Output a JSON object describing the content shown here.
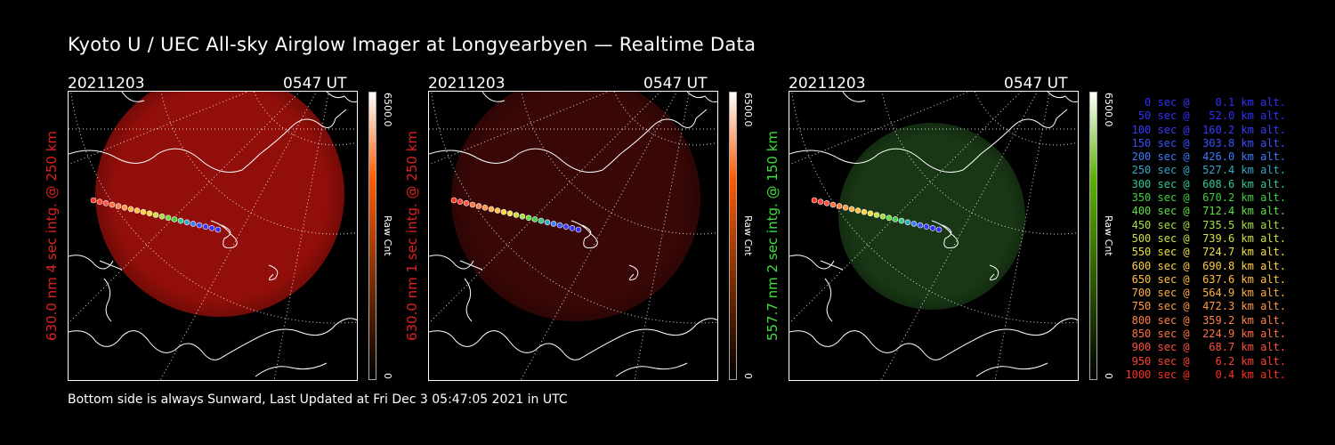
{
  "title": "Kyoto U / UEC All-sky Airglow Imager at Longyearbyen — Realtime Data",
  "footer": "Bottom side is always Sunward, Last Updated at Fri Dec  3 05:47:05 2021 in UTC",
  "panels": [
    {
      "date": "20211203",
      "time": "0547 UT",
      "side_label": "630.0 nm 4 sec intg. @ 250 km",
      "side_color": "#e02020",
      "colorbar_max": "6500.0",
      "colorbar_unit": "Raw Cnt",
      "colorbar_min": "0",
      "image_color": "#9a0f0a",
      "image_opacity": 0.95,
      "bar_top": "#ffffff",
      "bar_mid": "#ff5a00",
      "bar_bottom": "#000000"
    },
    {
      "date": "20211203",
      "time": "0547 UT",
      "side_label": "630.0 nm 1 sec intg. @ 250 km",
      "side_color": "#e02020",
      "colorbar_max": "6500.0",
      "colorbar_unit": "Raw Cnt",
      "colorbar_min": "0",
      "image_color": "#3c0806",
      "image_opacity": 0.95,
      "bar_top": "#ffffff",
      "bar_mid": "#ff5a00",
      "bar_bottom": "#000000"
    },
    {
      "date": "20211203",
      "time": "0547 UT",
      "side_label": "557.7 nm 2 sec intg. @ 150 km",
      "side_color": "#3ee03e",
      "colorbar_max": "6500.0",
      "colorbar_unit": "Raw Cnt",
      "colorbar_min": "0",
      "image_color": "#1a3a16",
      "image_opacity": 0.95,
      "bar_top": "#ffffff",
      "bar_mid": "#5ab400",
      "bar_bottom": "#000000"
    }
  ],
  "legend": [
    {
      "text": "   0 sec @    0.1 km alt.",
      "color": "#3030ff"
    },
    {
      "text": "  50 sec @   52.0 km alt.",
      "color": "#3030ff"
    },
    {
      "text": " 100 sec @  160.2 km alt.",
      "color": "#3a3aff"
    },
    {
      "text": " 150 sec @  303.8 km alt.",
      "color": "#3a50ff"
    },
    {
      "text": " 200 sec @  426.0 km alt.",
      "color": "#3a7cff"
    },
    {
      "text": " 250 sec @  527.4 km alt.",
      "color": "#30a8c8"
    },
    {
      "text": " 300 sec @  608.6 km alt.",
      "color": "#30c890"
    },
    {
      "text": " 350 sec @  670.2 km alt.",
      "color": "#40d040"
    },
    {
      "text": " 400 sec @  712.4 km alt.",
      "color": "#60e040"
    },
    {
      "text": " 450 sec @  735.5 km alt.",
      "color": "#a0e040"
    },
    {
      "text": " 500 sec @  739.6 km alt.",
      "color": "#d0e040"
    },
    {
      "text": " 550 sec @  724.7 km alt.",
      "color": "#f0e040"
    },
    {
      "text": " 600 sec @  690.8 km alt.",
      "color": "#ffd040"
    },
    {
      "text": " 650 sec @  637.6 km alt.",
      "color": "#ffc040"
    },
    {
      "text": " 700 sec @  564.9 km alt.",
      "color": "#ffb040"
    },
    {
      "text": " 750 sec @  472.3 km alt.",
      "color": "#ff9a40"
    },
    {
      "text": " 800 sec @  359.2 km alt.",
      "color": "#ff8040"
    },
    {
      "text": " 850 sec @  224.9 km alt.",
      "color": "#ff7040"
    },
    {
      "text": " 900 sec @   68.7 km alt.",
      "color": "#ff5040"
    },
    {
      "text": " 950 sec @    6.2 km alt.",
      "color": "#ff4030"
    },
    {
      "text": "1000 sec @    0.4 km alt.",
      "color": "#ff3020"
    }
  ]
}
